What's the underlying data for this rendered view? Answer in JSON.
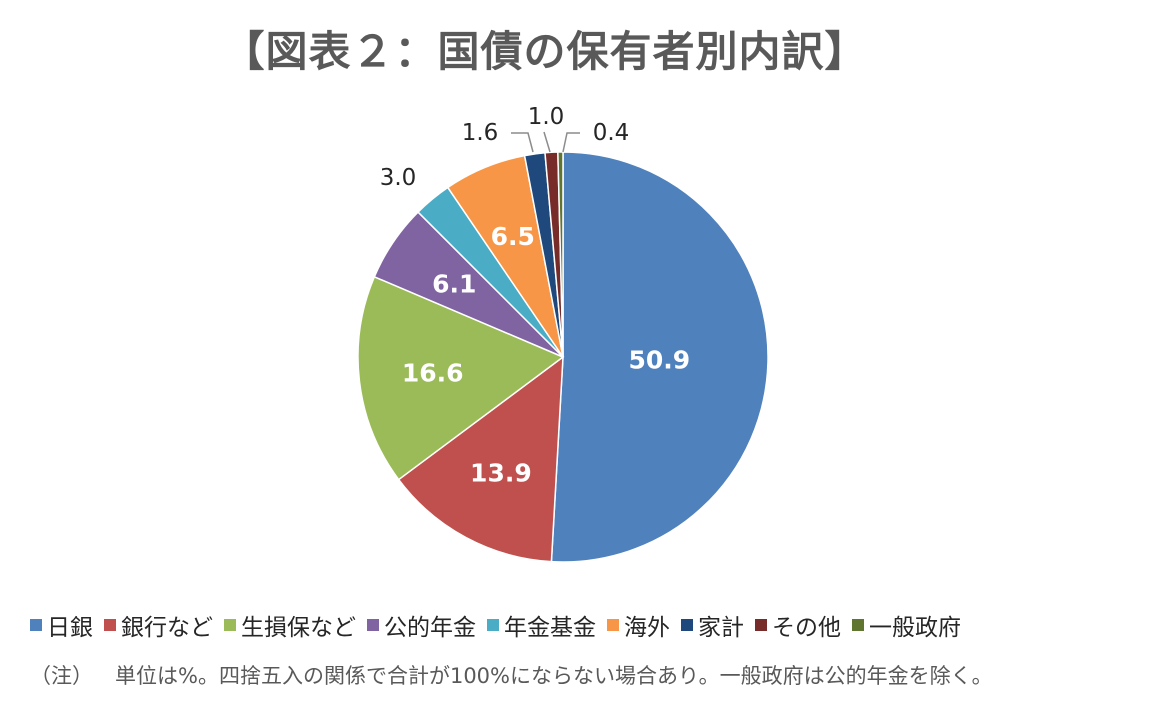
{
  "title": "【図表２：国債の保有者別内訳】",
  "chart_data": {
    "type": "pie",
    "title": "【図表２：国債の保有者別内訳】",
    "start": "12 o'clock, clockwise",
    "unit": "%",
    "slices": [
      {
        "label": "日銀",
        "value": 50.9,
        "display": "50.9",
        "color": "#4F81BD",
        "label_position": "inside",
        "label_color": "#FFFFFF"
      },
      {
        "label": "銀行など",
        "value": 13.9,
        "display": "13.9",
        "color": "#C0504D",
        "label_position": "inside",
        "label_color": "#FFFFFF"
      },
      {
        "label": "生損保など",
        "value": 16.6,
        "display": "16.6",
        "color": "#9BBB59",
        "label_position": "inside",
        "label_color": "#FFFFFF"
      },
      {
        "label": "公的年金",
        "value": 6.1,
        "display": "6.1",
        "color": "#8064A2",
        "label_position": "inside",
        "label_color": "#FFFFFF"
      },
      {
        "label": "年金基金",
        "value": 3.0,
        "display": "3.0",
        "color": "#4BACC6",
        "label_position": "outside",
        "label_color": "#262626"
      },
      {
        "label": "海外",
        "value": 6.5,
        "display": "6.5",
        "color": "#F79646",
        "label_position": "inside",
        "label_color": "#FFFFFF"
      },
      {
        "label": "家計",
        "value": 1.6,
        "display": "1.6",
        "color": "#1F497D",
        "label_position": "outside",
        "label_color": "#262626"
      },
      {
        "label": "その他",
        "value": 1.0,
        "display": "1.0",
        "color": "#772C2A",
        "label_position": "outside",
        "label_color": "#262626"
      },
      {
        "label": "一般政府",
        "value": 0.4,
        "display": "0.4",
        "color": "#5F7530",
        "label_position": "outside",
        "label_color": "#262626"
      }
    ],
    "legend_position": "bottom"
  },
  "note": {
    "prefix": "（注）",
    "text": "単位は%。四捨五入の関係で合計が100%にならない場合あり。一般政府は公的年金を除く。"
  }
}
